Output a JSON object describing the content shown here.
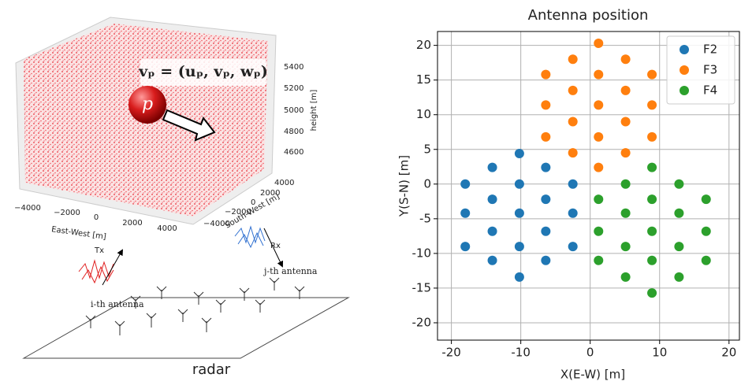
{
  "diagram": {
    "formula": "vₚ = (uₚ, vₚ, wₚ)",
    "particle": "p",
    "height_ticks": [
      "5400",
      "5200",
      "5000",
      "4800",
      "4600"
    ],
    "height_label": "height [m]",
    "sw_ticks": [
      "4000",
      "2000",
      "0",
      "−2000",
      "−4000"
    ],
    "sw_label": "South-West [m]",
    "ew_ticks": [
      "−4000",
      "−2000",
      "0",
      "2000",
      "4000"
    ],
    "ew_label": "East-West [m]",
    "tx": "Tx",
    "rx": "Rx",
    "i_antenna": "i-th antenna",
    "j_antenna": "j-th antenna",
    "radar": "radar"
  },
  "chart_data": {
    "type": "scatter",
    "title": "Antenna position",
    "x_label": "X(E-W) [m]",
    "y_label": "Y(S-N) [m]",
    "xlim": [
      -22,
      21.5
    ],
    "ylim": [
      -22.5,
      22
    ],
    "xticks": [
      -20,
      -10,
      0,
      10,
      20
    ],
    "yticks": [
      -20,
      -15,
      -10,
      -5,
      0,
      5,
      10,
      15,
      20
    ],
    "grid": true,
    "legend": "upper right",
    "series": [
      {
        "name": "F2",
        "color": "#1f77b4",
        "x": [
          -18,
          -18,
          -18,
          -14.1,
          -14.1,
          -14.1,
          -14.1,
          -10.2,
          -10.2,
          -10.2,
          -10.2,
          -10.2,
          -6.4,
          -6.4,
          -6.4,
          -6.4,
          -2.5,
          -2.5,
          -2.5
        ],
        "values": [
          0,
          -4.2,
          -9,
          2.4,
          -2.2,
          -6.8,
          -11,
          4.4,
          0,
          -4.2,
          -9,
          -13.4,
          2.4,
          -2.2,
          -6.8,
          -11,
          0,
          -4.2,
          -9
        ]
      },
      {
        "name": "F3",
        "color": "#ff7f0e",
        "x": [
          -6.4,
          -6.4,
          -6.4,
          -2.5,
          -2.5,
          -2.5,
          -2.5,
          1.2,
          1.2,
          1.2,
          1.2,
          1.2,
          5.1,
          5.1,
          5.1,
          5.1,
          8.9,
          8.9,
          8.9
        ],
        "values": [
          15.8,
          11.4,
          6.8,
          18,
          13.5,
          9,
          4.5,
          20.3,
          15.8,
          11.4,
          6.8,
          2.4,
          18,
          13.5,
          9,
          4.5,
          15.8,
          11.4,
          6.8
        ]
      },
      {
        "name": "F4",
        "color": "#2ca02c",
        "x": [
          1.2,
          1.2,
          1.2,
          5.1,
          5.1,
          5.1,
          5.1,
          8.9,
          8.9,
          8.9,
          8.9,
          8.9,
          12.8,
          12.8,
          12.8,
          12.8,
          16.7,
          16.7,
          16.7
        ],
        "values": [
          -2.2,
          -6.8,
          -11,
          0,
          -4.2,
          -9,
          -13.4,
          2.4,
          -2.2,
          -6.8,
          -11,
          -15.7,
          0,
          -4.2,
          -9,
          -13.4,
          -2.2,
          -6.8,
          -11
        ]
      }
    ]
  }
}
